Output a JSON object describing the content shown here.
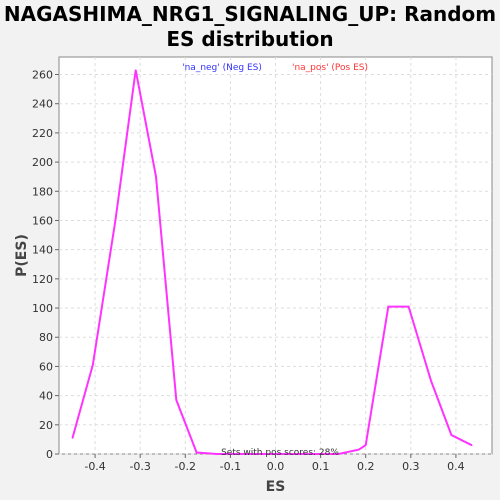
{
  "chart_data": {
    "type": "line",
    "title": "NAGASHIMA_NRG1_SIGNALING_UP: Random ES distribution",
    "xlabel": "ES",
    "ylabel": "P(ES)",
    "xlim": [
      -0.48,
      0.48
    ],
    "ylim": [
      0,
      272
    ],
    "xticks": [
      -0.4,
      -0.3,
      -0.2,
      -0.1,
      0.0,
      0.1,
      0.2,
      0.3,
      0.4
    ],
    "xtick_labels": [
      "-0.4",
      "-0.3",
      "-0.2",
      "-0.1",
      "0.0",
      "0.1",
      "0.2",
      "0.3",
      "0.4"
    ],
    "yticks": [
      0,
      20,
      40,
      60,
      80,
      100,
      120,
      140,
      160,
      180,
      200,
      220,
      240,
      260
    ],
    "grid": true,
    "legend_position": "top",
    "legend": [
      {
        "label": "'na_neg' (Neg ES)",
        "color": "#3333ff"
      },
      {
        "label": "'na_pos' (Pos ES)",
        "color": "#ff3333"
      }
    ],
    "annotation": "Sets with pos scores: 28%",
    "series": [
      {
        "color": "#ff33ff",
        "x": [
          -0.45,
          -0.405,
          -0.355,
          -0.31,
          -0.265,
          -0.22,
          -0.175,
          -0.13,
          -0.085,
          -0.04,
          0.005,
          0.05,
          0.095,
          0.14,
          0.185,
          0.2,
          0.25,
          0.295,
          0.345,
          0.39,
          0.435
        ],
        "y": [
          11,
          61,
          160,
          263,
          190,
          37,
          1,
          0,
          0,
          0,
          0,
          0,
          0,
          0,
          3,
          6,
          101,
          101,
          50,
          13,
          6
        ]
      }
    ]
  }
}
